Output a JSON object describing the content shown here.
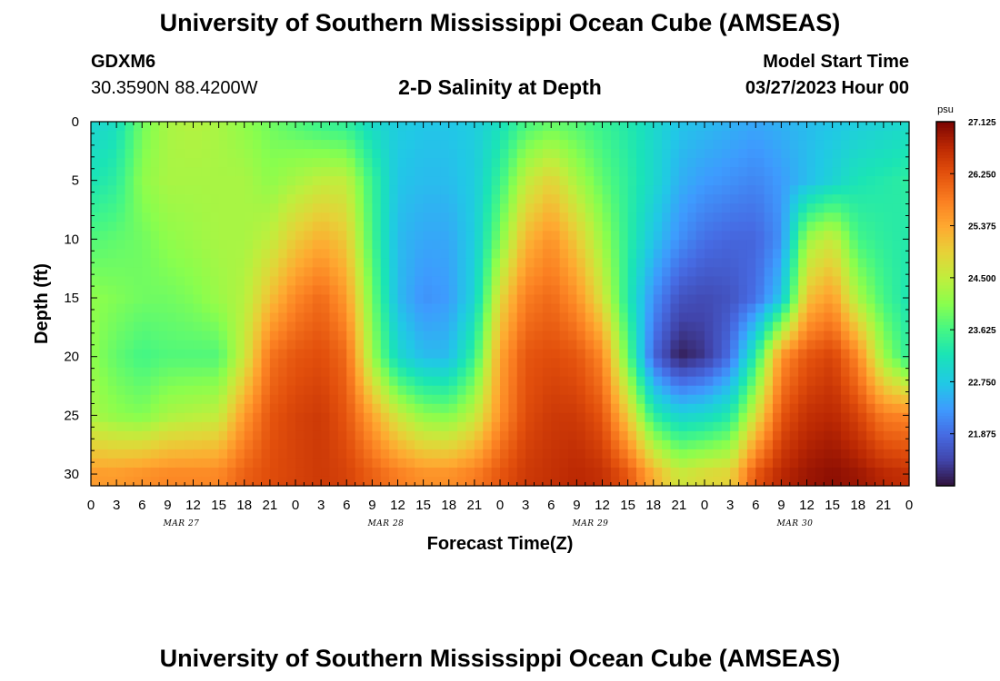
{
  "header": {
    "title": "University of Southern Mississippi Ocean Cube (AMSEAS)",
    "station_id": "GDXM6",
    "coordinates": "30.3590N  88.4200W",
    "subtitle": "2-D Salinity at Depth",
    "model_start_label": "Model Start Time",
    "model_start_value": "03/27/2023 Hour 00"
  },
  "footer": {
    "title": "University of Southern Mississippi Ocean Cube (AMSEAS)"
  },
  "chart_data": {
    "type": "heatmap",
    "title": "2-D Salinity at Depth",
    "xlabel": "Forecast Time(Z)",
    "ylabel": "Depth (ft)",
    "x_ticks": [
      "0",
      "3",
      "6",
      "9",
      "12",
      "15",
      "18",
      "21",
      "0",
      "3",
      "6",
      "9",
      "12",
      "15",
      "18",
      "21",
      "0",
      "3",
      "6",
      "9",
      "12",
      "15",
      "18",
      "21",
      "0",
      "3",
      "6",
      "9",
      "12",
      "15",
      "18",
      "21",
      "0"
    ],
    "x_range_hours": [
      0,
      96
    ],
    "day_labels": [
      {
        "label": "MAR 27",
        "hour": 12
      },
      {
        "label": "MAR 28",
        "hour": 36
      },
      {
        "label": "MAR 29",
        "hour": 60
      },
      {
        "label": "MAR 30",
        "hour": 84
      }
    ],
    "y_ticks": [
      "0",
      "5",
      "10",
      "15",
      "20",
      "25",
      "30"
    ],
    "y_range_ft": [
      0,
      31
    ],
    "y_inverted": true,
    "colorbar": {
      "unit": "psu",
      "range": [
        21.0,
        27.125
      ],
      "tick_labels": [
        "27.125",
        "26.250",
        "25.375",
        "24.500",
        "23.625",
        "22.750",
        "21.875"
      ],
      "colormap": "turbo"
    },
    "time_hours": [
      0,
      3,
      6,
      9,
      12,
      15,
      18,
      21,
      24,
      27,
      30,
      33,
      36,
      39,
      42,
      45,
      48,
      51,
      54,
      57,
      60,
      63,
      66,
      69,
      72,
      75,
      78,
      81,
      84,
      87,
      90,
      93,
      96
    ],
    "depth_ft": [
      0,
      5,
      10,
      15,
      20,
      25,
      30
    ],
    "salinity_psu": [
      [
        22.9,
        23.1,
        23.9,
        24.3,
        24.4,
        24.3,
        24.1,
        23.9,
        23.7,
        23.5,
        23.4,
        23.0,
        22.8,
        22.7,
        22.7,
        22.8,
        23.1,
        23.6,
        23.8,
        23.7,
        23.5,
        23.3,
        23.0,
        22.7,
        22.6,
        22.5,
        22.4,
        22.5,
        22.6,
        22.7,
        22.8,
        22.9,
        23.0
      ],
      [
        23.2,
        23.4,
        24.1,
        24.3,
        24.3,
        24.3,
        24.3,
        24.1,
        24.3,
        24.5,
        24.5,
        23.5,
        22.7,
        22.6,
        22.6,
        22.8,
        23.5,
        24.5,
        24.9,
        24.3,
        23.8,
        23.4,
        23.0,
        22.5,
        22.3,
        22.2,
        22.1,
        22.3,
        22.6,
        22.9,
        23.2,
        23.3,
        23.4
      ],
      [
        23.7,
        23.8,
        23.9,
        24.1,
        24.2,
        24.3,
        24.3,
        24.5,
        25.0,
        25.3,
        25.0,
        23.6,
        22.6,
        22.4,
        22.4,
        22.8,
        24.0,
        25.2,
        25.6,
        25.0,
        24.2,
        23.4,
        22.7,
        22.2,
        21.9,
        21.8,
        21.8,
        22.2,
        24.2,
        24.6,
        23.6,
        23.4,
        23.3
      ],
      [
        24.1,
        24.0,
        23.9,
        23.9,
        24.0,
        24.2,
        24.4,
        25.1,
        25.7,
        26.0,
        25.5,
        23.9,
        22.6,
        22.2,
        22.3,
        22.9,
        24.8,
        25.8,
        26.0,
        25.6,
        24.7,
        23.3,
        22.2,
        21.6,
        21.5,
        21.6,
        21.9,
        22.7,
        25.1,
        25.5,
        24.3,
        23.6,
        23.2
      ],
      [
        24.1,
        23.8,
        23.6,
        23.7,
        23.7,
        23.7,
        24.6,
        25.9,
        26.2,
        26.3,
        26.0,
        24.2,
        23.0,
        22.6,
        22.6,
        23.5,
        25.4,
        26.2,
        26.3,
        26.2,
        25.7,
        23.8,
        21.8,
        21.1,
        21.3,
        21.9,
        23.4,
        25.6,
        26.2,
        26.4,
        25.7,
        24.2,
        23.4
      ],
      [
        24.3,
        24.1,
        24.0,
        24.3,
        24.4,
        24.5,
        25.5,
        26.2,
        26.4,
        26.5,
        26.2,
        25.4,
        24.6,
        24.1,
        24.0,
        24.5,
        25.6,
        26.3,
        26.5,
        26.5,
        26.2,
        25.0,
        23.4,
        22.9,
        23.0,
        23.3,
        24.7,
        26.2,
        26.6,
        26.7,
        26.4,
        25.8,
        25.7
      ],
      [
        25.5,
        25.5,
        25.6,
        25.7,
        25.7,
        25.7,
        26.1,
        26.3,
        26.4,
        26.5,
        26.4,
        26.1,
        25.8,
        25.6,
        25.6,
        25.8,
        26.2,
        26.5,
        26.6,
        26.7,
        26.6,
        26.2,
        25.3,
        24.6,
        24.8,
        24.9,
        26.2,
        26.7,
        26.9,
        27.0,
        26.9,
        26.7,
        26.6
      ]
    ]
  }
}
